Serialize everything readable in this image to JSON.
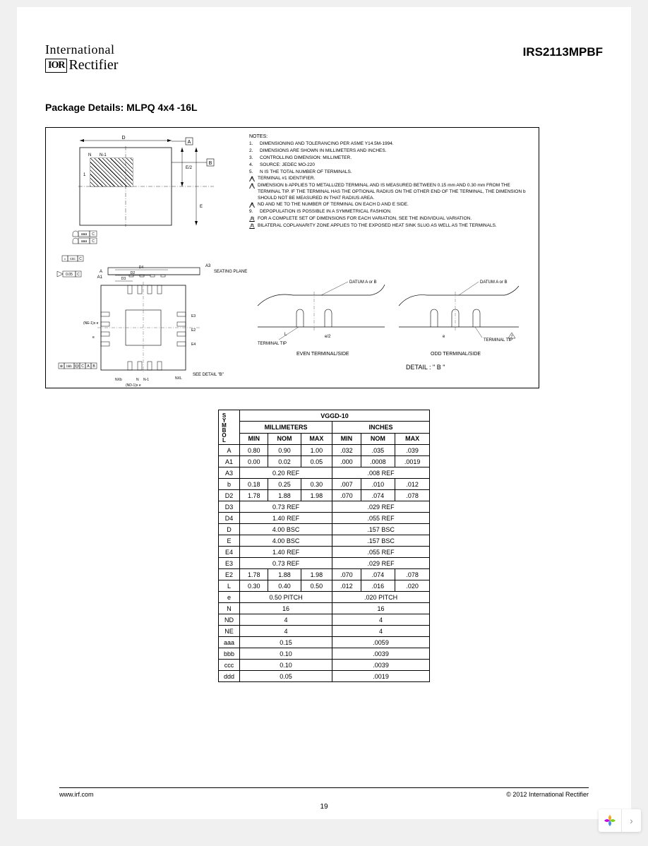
{
  "header": {
    "logo_top": "International",
    "logo_ior": "IOR",
    "logo_bottom": "Rectifier",
    "part_number": "IRS2113MPBF"
  },
  "section_title": "Package Details:  MLPQ 4x4 -16L",
  "notes": {
    "title": "NOTES:",
    "items": [
      {
        "num": "1.",
        "text": "DIMENSIONING AND TOLERANCING PER ASME Y14.5M-1994."
      },
      {
        "num": "2.",
        "text": "DIMENSIONS ARE SHOWN IN MILLIMETERS AND INCHES."
      },
      {
        "num": "3.",
        "text": "CONTROLLING DIMENSION: MILLIMETER."
      },
      {
        "num": "4.",
        "text": "SOURCE: JEDEC MO-220"
      },
      {
        "num": "5.",
        "text": "N IS THE TOTAL NUMBER OF TERMINALS."
      },
      {
        "tri": "6",
        "text": "TERMINAL #1 IDENTIFIER."
      },
      {
        "tri": "7",
        "text": "DIMENSION b APPLIES TO METALLIZED TERMINAL AND IS MEASURED BETWEEN 0.15 mm AND 0.30 mm FROM THE TERMINAL TIP. IF THE TERMINAL HAS THE OPTIONAL RADIUS ON THE OTHER END OF THE TERMINAL, THE DIMENSION b SHOULD NOT BE MEASURED IN THAT RADIUS AREA."
      },
      {
        "tri": "8",
        "text": "ND AND NE TO THE NUMBER OF TERMINAL ON EACH D AND E SIDE."
      },
      {
        "num": "9.",
        "text": "DEPOPULATION IS POSSIBLE IN A SYMMETRICAL FASHION."
      },
      {
        "tri": "10",
        "text": "FOR A COMPLETE SET OF DIMENSIONS FOR EACH VARIATION, SEE THE INDIVIDUAL VARIATION."
      },
      {
        "tri": "11",
        "text": "BILATERAL COPLANARITY ZONE APPLIES TO THE EXPOSED HEAT SINK SLUG AS WELL AS THE TERMINALS."
      }
    ]
  },
  "diagram_labels": {
    "top_d": "D",
    "box_a": "A",
    "box_b": "B",
    "n_label": "N",
    "n1_label": "N-1",
    "e2": "E/2",
    "E": "E",
    "seating": "SEATING PLANE",
    "A": "A",
    "A1": "A1",
    "A3": "A3",
    "D3": "D3",
    "D2": "D2",
    "D4": "D4",
    "E3": "E3",
    "E2b": "E2",
    "E4": "E4",
    "e": "e",
    "ne1": "(NE-1)x e",
    "nd1": "(ND-1)x e",
    "nxl": "NXL",
    "nxb": "NXb",
    "see_detail": "SEE DETAIL \"B\"",
    "datum_ab": "DATUM A or B",
    "terminal_tip": "TERMINAL TIP",
    "e_half": "e/2",
    "even": "EVEN TERMINAL/SIDE",
    "odd": "ODD TERMINAL/SIDE",
    "detail_b": "DETAIL : \" B \"",
    "tol_aaa": "aaa",
    "tol_ccc": "ccc",
    "tol_bbb": "bbb",
    "tol_005": "0.05",
    "C": "C",
    "M": "M",
    "A_": "A",
    "B_": "B",
    "L": "L",
    "one": "1"
  },
  "table": {
    "title": "VGGD-10",
    "unit_mm": "MILLIMETERS",
    "unit_in": "INCHES",
    "min": "MIN",
    "nom": "NOM",
    "max": "MAX",
    "symbol_header": "SYMBOL",
    "rows": [
      {
        "sym": "A",
        "mm": [
          "0.80",
          "0.90",
          "1.00"
        ],
        "in": [
          ".032",
          ".035",
          ".039"
        ]
      },
      {
        "sym": "A1",
        "mm": [
          "0.00",
          "0.02",
          "0.05"
        ],
        "in": [
          ".000",
          ".0008",
          ".0019"
        ]
      },
      {
        "sym": "A3",
        "mm_span": "0.20 REF",
        "in_span": ".008 REF"
      },
      {
        "sym": "b",
        "mm": [
          "0.18",
          "0.25",
          "0.30"
        ],
        "in": [
          ".007",
          ".010",
          ".012"
        ]
      },
      {
        "sym": "D2",
        "mm": [
          "1.78",
          "1.88",
          "1.98"
        ],
        "in": [
          ".070",
          ".074",
          ".078"
        ]
      },
      {
        "sym": "D3",
        "mm_span": "0.73 REF",
        "in_span": ".029 REF"
      },
      {
        "sym": "D4",
        "mm_span": "1.40 REF",
        "in_span": ".055 REF"
      },
      {
        "sym": "D",
        "mm_span": "4.00 BSC",
        "in_span": ".157 BSC"
      },
      {
        "sym": "E",
        "mm_span": "4.00 BSC",
        "in_span": ".157 BSC"
      },
      {
        "sym": "E4",
        "mm_span": "1.40 REF",
        "in_span": ".055 REF"
      },
      {
        "sym": "E3",
        "mm_span": "0.73 REF",
        "in_span": ".029 REF"
      },
      {
        "sym": "E2",
        "mm": [
          "1.78",
          "1.88",
          "1.98"
        ],
        "in": [
          ".070",
          ".074",
          ".078"
        ]
      },
      {
        "sym": "L",
        "mm": [
          "0.30",
          "0.40",
          "0.50"
        ],
        "in": [
          ".012",
          ".016",
          ".020"
        ]
      },
      {
        "sym": "e",
        "mm_span": "0.50 PITCH",
        "in_span": ".020 PITCH"
      },
      {
        "sym": "N",
        "mm_span": "16",
        "in_span": "16"
      },
      {
        "sym": "ND",
        "mm_span": "4",
        "in_span": "4"
      },
      {
        "sym": "NE",
        "mm_span": "4",
        "in_span": "4"
      },
      {
        "sym": "aaa",
        "mm_span": "0.15",
        "in_span": ".0059"
      },
      {
        "sym": "bbb",
        "mm_span": "0.10",
        "in_span": ".0039"
      },
      {
        "sym": "ccc",
        "mm_span": "0.10",
        "in_span": ".0039"
      },
      {
        "sym": "ddd",
        "mm_span": "0.05",
        "in_span": ".0019"
      }
    ]
  },
  "footer": {
    "url": "www.irf.com",
    "copyright": "© 2012 International Rectifier",
    "page": "19"
  },
  "colors": {
    "page_bg": "#ffffff",
    "body_bg": "#f0f0f0",
    "border": "#000000",
    "nav_petals": [
      "#f5a623",
      "#7ed321",
      "#4a90e2",
      "#bd10e0"
    ]
  }
}
